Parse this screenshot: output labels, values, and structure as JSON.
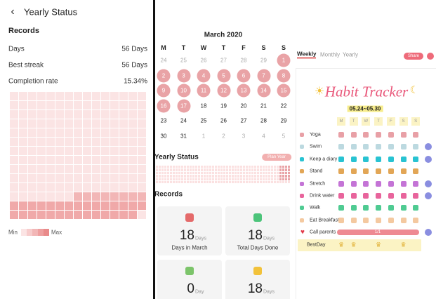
{
  "left": {
    "title": "Yearly Status",
    "section": "Records",
    "rows": [
      {
        "label": "Days",
        "value": "56 Days"
      },
      {
        "label": "Best streak",
        "value": "56 Days"
      },
      {
        "label": "Completion rate",
        "value": "15.34%"
      }
    ],
    "legend": {
      "min": "Min",
      "max": "Max"
    }
  },
  "middle": {
    "month": "March 2020",
    "weekdays": [
      "M",
      "T",
      "W",
      "T",
      "F",
      "S",
      "S"
    ],
    "weeks": [
      [
        "24",
        "25",
        "26",
        "27",
        "28",
        "29",
        "1"
      ],
      [
        "2",
        "3",
        "4",
        "5",
        "6",
        "7",
        "8"
      ],
      [
        "9",
        "10",
        "11",
        "12",
        "13",
        "14",
        "15"
      ],
      [
        "16",
        "17",
        "18",
        "19",
        "20",
        "21",
        "22"
      ],
      [
        "23",
        "24",
        "25",
        "26",
        "27",
        "28",
        "29"
      ],
      [
        "30",
        "31",
        "1",
        "2",
        "3",
        "4",
        "5"
      ]
    ],
    "state": [
      [
        2,
        2,
        2,
        2,
        2,
        2,
        1
      ],
      [
        1,
        1,
        1,
        1,
        1,
        1,
        1
      ],
      [
        1,
        1,
        1,
        1,
        1,
        1,
        1
      ],
      [
        1,
        1,
        0,
        0,
        0,
        0,
        0
      ],
      [
        0,
        0,
        0,
        0,
        0,
        0,
        0
      ],
      [
        0,
        0,
        2,
        2,
        2,
        2,
        2
      ]
    ],
    "yearly_title": "Yearly Status",
    "year_button": "Plan Year",
    "records_title": "Records",
    "cards": [
      {
        "number": "18",
        "unit": "Days",
        "label": "Days in March",
        "icon": "#e46a6a"
      },
      {
        "number": "18",
        "unit": "Days",
        "label": "Total Days Done",
        "icon": "#4cc47a"
      },
      {
        "number": "0",
        "unit": "Day",
        "icon": "#7cc46a"
      },
      {
        "number": "18",
        "unit": "Days",
        "icon": "#f2c23a"
      }
    ]
  },
  "right": {
    "tabs": [
      "Weekly",
      "Monthly",
      "Yearly"
    ],
    "share": "Share",
    "title": "Habit Tracker",
    "range": "05.24~05.30",
    "weekdays": [
      "M",
      "T",
      "W",
      "T",
      "F",
      "S",
      "S"
    ],
    "habits": [
      {
        "name": "Yoga",
        "color": "#e8a0a6"
      },
      {
        "name": "Swim",
        "color": "#bcd9e0"
      },
      {
        "name": "Keep a diary",
        "color": "#28c3d2"
      },
      {
        "name": "Stand",
        "color": "#e2a656"
      },
      {
        "name": "Stretch",
        "color": "#c474d6"
      },
      {
        "name": "Drink water",
        "color": "#e8649c"
      },
      {
        "name": "Walk",
        "color": "#4fcb92"
      },
      {
        "name": "Eat Breakfast",
        "color": "#f4c9a0"
      }
    ],
    "call": {
      "name": "Call parents",
      "progress": "1/1"
    },
    "best_day": "BestDay"
  }
}
